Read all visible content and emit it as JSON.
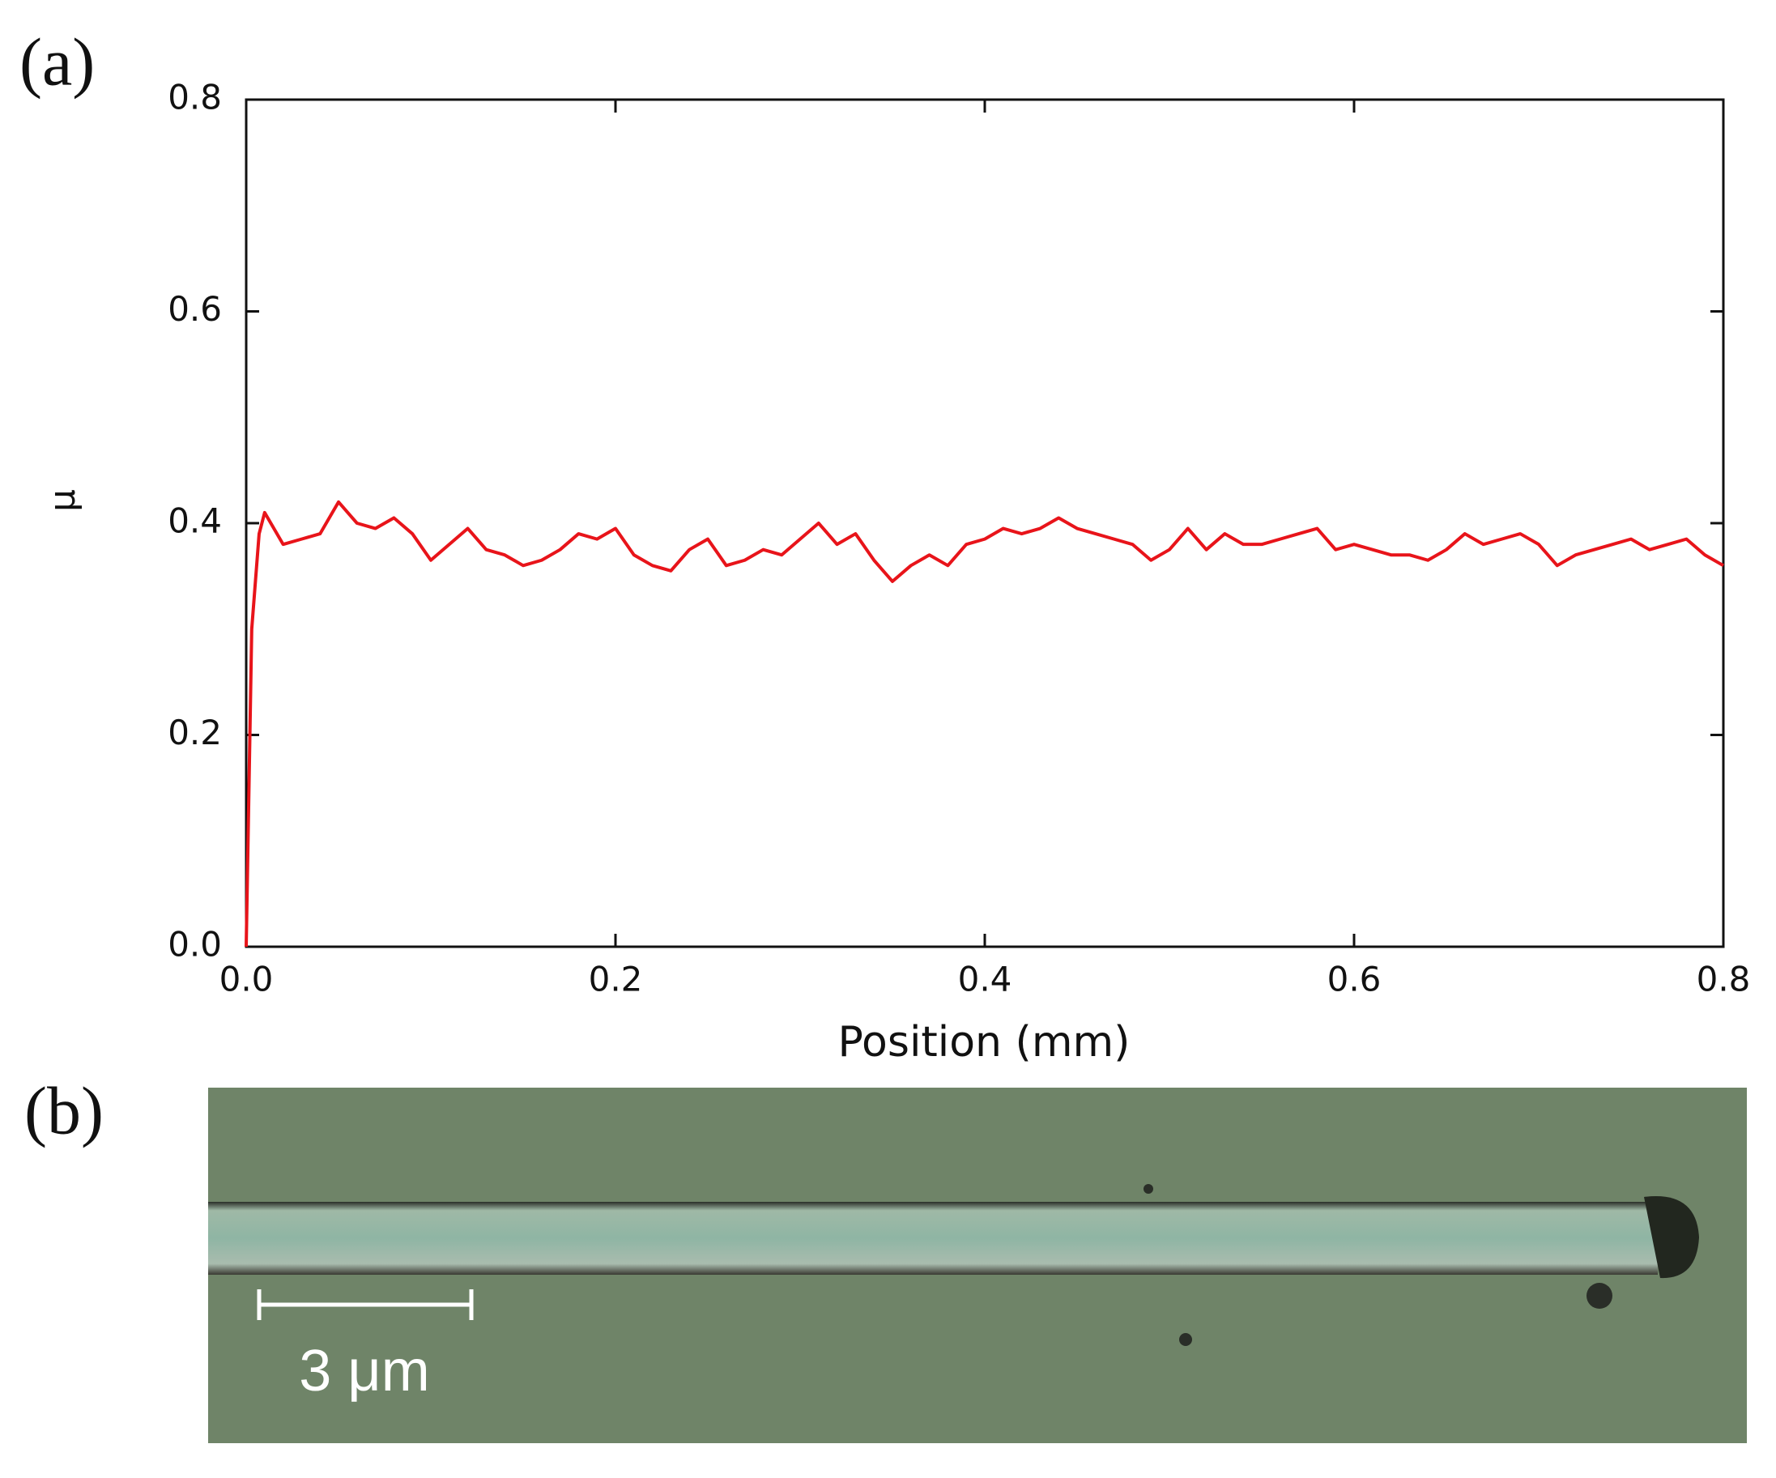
{
  "chart_data": {
    "type": "line",
    "panel_label": "(a)",
    "xlabel": "Position (mm)",
    "ylabel": "μ",
    "x": [
      0,
      0.003,
      0.007,
      0.01,
      0.02,
      0.03,
      0.04,
      0.05,
      0.06,
      0.07,
      0.08,
      0.09,
      0.1,
      0.11,
      0.12,
      0.13,
      0.14,
      0.15,
      0.16,
      0.17,
      0.18,
      0.19,
      0.2,
      0.21,
      0.22,
      0.23,
      0.24,
      0.25,
      0.26,
      0.27,
      0.28,
      0.29,
      0.3,
      0.31,
      0.32,
      0.33,
      0.34,
      0.35,
      0.36,
      0.37,
      0.38,
      0.39,
      0.4,
      0.41,
      0.42,
      0.43,
      0.44,
      0.45,
      0.46,
      0.47,
      0.48,
      0.49,
      0.5,
      0.51,
      0.52,
      0.53,
      0.54,
      0.55,
      0.56,
      0.57,
      0.58,
      0.59,
      0.6,
      0.61,
      0.62,
      0.63,
      0.64,
      0.65,
      0.66,
      0.67,
      0.68,
      0.69,
      0.7,
      0.71,
      0.72,
      0.73,
      0.74,
      0.75,
      0.76,
      0.77,
      0.78,
      0.79,
      0.8
    ],
    "series": [
      {
        "color": "#e8141a",
        "values": [
          0,
          0.3,
          0.39,
          0.41,
          0.38,
          0.385,
          0.39,
          0.42,
          0.4,
          0.395,
          0.405,
          0.39,
          0.365,
          0.38,
          0.395,
          0.375,
          0.37,
          0.36,
          0.365,
          0.375,
          0.39,
          0.385,
          0.395,
          0.37,
          0.36,
          0.355,
          0.375,
          0.385,
          0.36,
          0.365,
          0.375,
          0.37,
          0.385,
          0.4,
          0.38,
          0.39,
          0.365,
          0.345,
          0.36,
          0.37,
          0.36,
          0.38,
          0.385,
          0.395,
          0.39,
          0.395,
          0.405,
          0.395,
          0.39,
          0.385,
          0.38,
          0.365,
          0.375,
          0.395,
          0.375,
          0.39,
          0.38,
          0.38,
          0.385,
          0.39,
          0.395,
          0.375,
          0.38,
          0.375,
          0.37,
          0.37,
          0.365,
          0.375,
          0.39,
          0.38,
          0.385,
          0.39,
          0.38,
          0.36,
          0.37,
          0.375,
          0.38,
          0.385,
          0.375,
          0.38,
          0.385,
          0.37,
          0.36
        ]
      }
    ],
    "xlim": [
      0,
      0.8
    ],
    "ylim": [
      0,
      0.8
    ],
    "xticks": [
      {
        "value": 0,
        "label": "0.0"
      },
      0.2,
      0.4,
      0.6,
      0.8
    ],
    "yticks": [
      {
        "value": 0,
        "label": "0.0"
      },
      0.2,
      0.4,
      0.6,
      0.8
    ]
  },
  "image_panel": {
    "panel_label": "(b)",
    "scale_bar_label": "3 μm"
  }
}
